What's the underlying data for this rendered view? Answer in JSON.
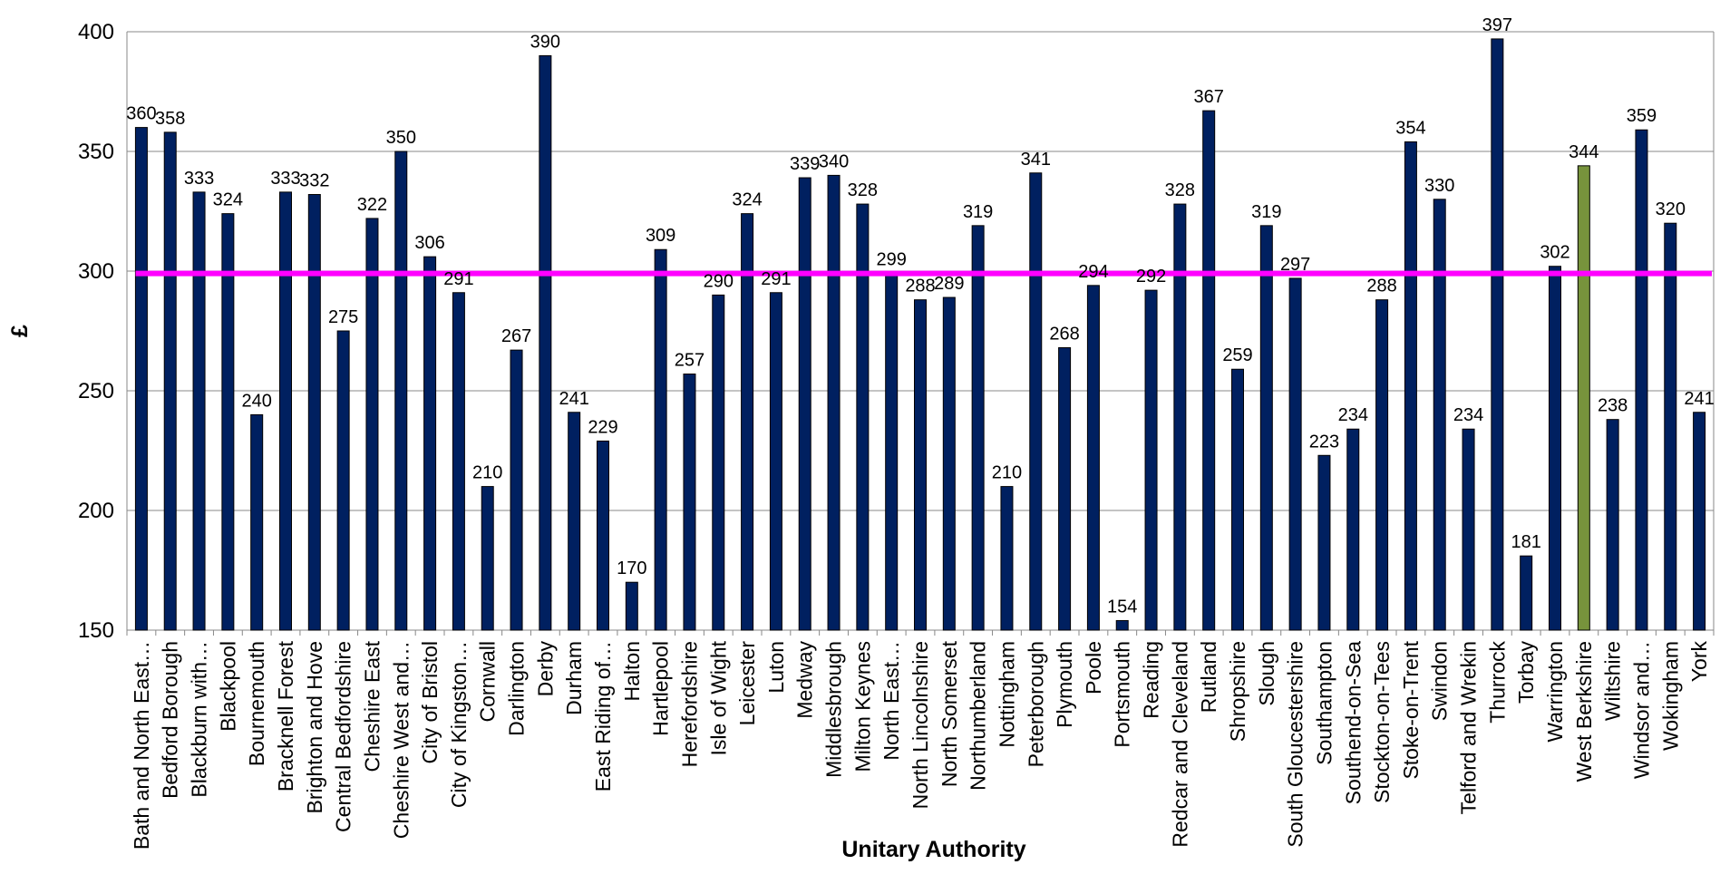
{
  "chart_data": {
    "type": "bar",
    "title": "",
    "xlabel": "Unitary Authority",
    "ylabel": "£",
    "ylim": [
      150,
      400
    ],
    "yticks": [
      "150",
      "200",
      "250",
      "300",
      "350",
      "400"
    ],
    "grid": true,
    "legend": "none",
    "categories": [
      "Bath and North East…",
      "Bedford Borough",
      "Blackburn with…",
      "Blackpool",
      "Bournemouth",
      "Bracknell Forest",
      "Brighton and Hove",
      "Central Bedfordshire",
      "Cheshire East",
      "Cheshire West and…",
      "City of Bristol",
      "City of Kingston…",
      "Cornwall",
      "Darlington",
      "Derby",
      "Durham",
      "East Riding of…",
      "Halton",
      "Hartlepool",
      "Herefordshire",
      "Isle of Wight",
      "Leicester",
      "Luton",
      "Medway",
      "Middlesbrough",
      "Milton Keynes",
      "North East…",
      "North Lincolnshire",
      "North Somerset",
      "Northumberland",
      "Nottingham",
      "Peterborough",
      "Plymouth",
      "Poole",
      "Portsmouth",
      "Reading",
      "Redcar and Cleveland",
      "Rutland",
      "Shropshire",
      "Slough",
      "South Gloucestershire",
      "Southampton",
      "Southend-on-Sea",
      "Stockton-on-Tees",
      "Stoke-on-Trent",
      "Swindon",
      "Telford and Wrekin",
      "Thurrock",
      "Torbay",
      "Warrington",
      "West Berkshire",
      "Wiltshire",
      "Windsor and…",
      "Wokingham",
      "York"
    ],
    "values": [
      360,
      358,
      333,
      324,
      240,
      333,
      332,
      275,
      322,
      350,
      306,
      291,
      210,
      267,
      390,
      241,
      229,
      170,
      309,
      257,
      290,
      324,
      291,
      339,
      340,
      328,
      299,
      288,
      289,
      319,
      210,
      341,
      268,
      294,
      154,
      292,
      328,
      367,
      259,
      319,
      297,
      223,
      234,
      288,
      354,
      330,
      234,
      397,
      181,
      302,
      344,
      238,
      359,
      320,
      241
    ],
    "data_labels": [
      "360",
      "358",
      "333",
      "324",
      "240",
      "333",
      "332",
      "275",
      "322",
      "350",
      "306",
      "291",
      "210",
      "267",
      "390",
      "241",
      "229",
      "170",
      "309",
      "257",
      "290",
      "324",
      "291",
      "339",
      "340",
      "328",
      "299",
      "288",
      "289",
      "319",
      "210",
      "341",
      "268",
      "294",
      "154",
      "292",
      "328",
      "367",
      "259",
      "319",
      "297",
      "223",
      "234",
      "288",
      "354",
      "330",
      "234",
      "397",
      "181",
      "302",
      "344",
      "238",
      "359",
      "320",
      "241"
    ],
    "highlight_category": "West Berkshire",
    "reference_line": {
      "value": 299
    },
    "colors": {
      "bar": "#002060",
      "highlight_bar": "#77933C",
      "reference_line": "#FF00FF",
      "grid": "#888888",
      "axis": "#888888"
    }
  }
}
